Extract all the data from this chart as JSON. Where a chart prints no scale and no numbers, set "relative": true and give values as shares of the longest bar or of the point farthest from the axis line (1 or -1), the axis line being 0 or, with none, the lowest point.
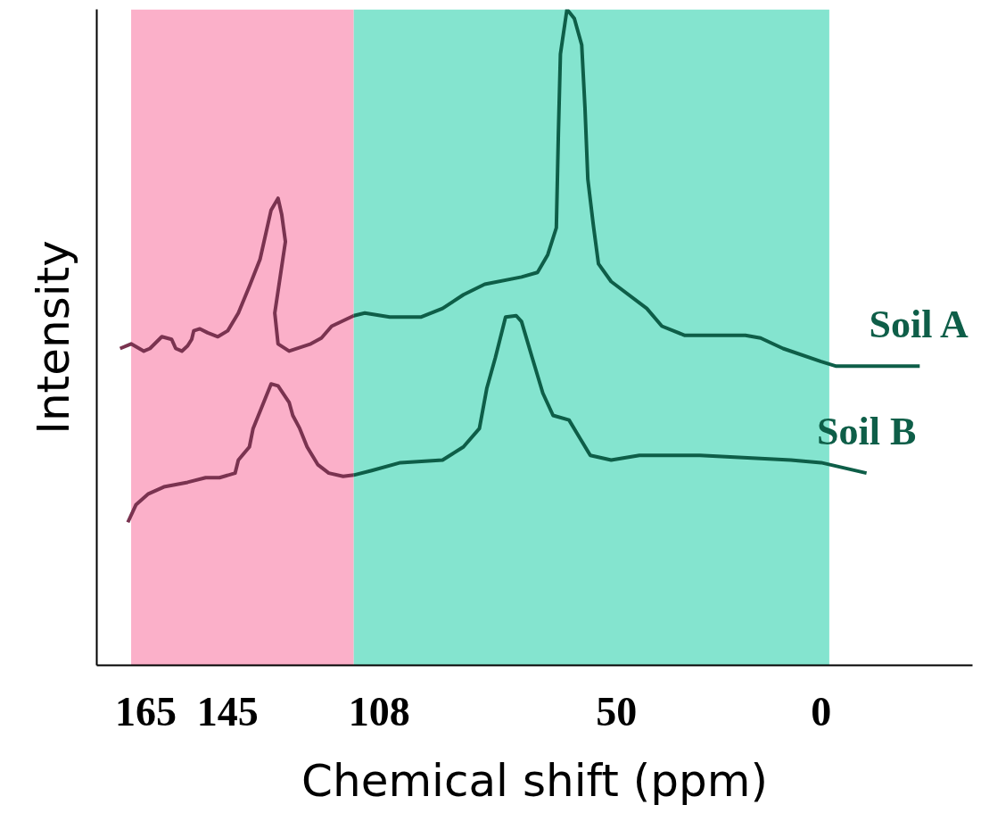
{
  "chart_data": {
    "type": "line",
    "relative": true,
    "xlabel": "Chemical shift (ppm)",
    "ylabel": "Intensity",
    "xlim": [
      177,
      -37
    ],
    "xticks": [
      165,
      145,
      108,
      50,
      0
    ],
    "marker": "none",
    "line_style": "solid",
    "bands": [
      {
        "axis": "x",
        "from": 168.6,
        "to": 114.2,
        "color": "#fbb0c9"
      },
      {
        "axis": "x",
        "from": 114.2,
        "to": -2,
        "color": "#84e4cf"
      }
    ],
    "series": [
      {
        "color": "#7a3350",
        "x": [
          171.3,
          168.6,
          165.5,
          164.0,
          161.1,
          158.7,
          157.7,
          156.2,
          154.8,
          153.8,
          153.3,
          151.8,
          149.9,
          147.4,
          145,
          142.4,
          139.7,
          137.1,
          134.4,
          132.7,
          131.8,
          130.9,
          133.5,
          132.7,
          130.0,
          124.7,
          122.1,
          119.6,
          114.2
        ],
        "values": [
          0.483,
          0.49,
          0.479,
          0.483,
          0.501,
          0.497,
          0.483,
          0.479,
          0.487,
          0.497,
          0.51,
          0.513,
          0.507,
          0.501,
          0.51,
          0.537,
          0.578,
          0.619,
          0.694,
          0.712,
          0.687,
          0.646,
          0.537,
          0.49,
          0.479,
          0.49,
          0.499,
          0.517,
          0.533
        ]
      },
      {
        "name": "Soil A",
        "color": "#0e5e48",
        "x": [
          114.2,
          111.5,
          105.4,
          97.7,
          92.5,
          87.4,
          82.2,
          73.2,
          69.3,
          66.8,
          64.7,
          64.2,
          63.7,
          62.1,
          60.3,
          58.5,
          57.7,
          57.0,
          55.7,
          54.4,
          51.3,
          42.6,
          38.9,
          33.3,
          18.5,
          14.8,
          9.3,
          0,
          -3.7,
          -24.1
        ],
        "values": [
          0.533,
          0.537,
          0.531,
          0.531,
          0.544,
          0.565,
          0.581,
          0.592,
          0.599,
          0.626,
          0.667,
          0.81,
          0.932,
          1.0,
          0.986,
          0.946,
          0.85,
          0.741,
          0.673,
          0.612,
          0.585,
          0.544,
          0.517,
          0.503,
          0.503,
          0.499,
          0.483,
          0.463,
          0.456,
          0.456
        ]
      },
      {
        "color": "#7a3350",
        "x": [
          169.4,
          167.4,
          164.5,
          160.6,
          154.8,
          150.4,
          147.0,
          143.2,
          142.4,
          139.7,
          138.8,
          136.2,
          134.4,
          132.7,
          130.0,
          129.1,
          127.4,
          125.6,
          123.0,
          120.3,
          116.8,
          114.2
        ],
        "values": [
          0.218,
          0.245,
          0.261,
          0.272,
          0.279,
          0.286,
          0.286,
          0.293,
          0.313,
          0.333,
          0.361,
          0.401,
          0.429,
          0.426,
          0.401,
          0.381,
          0.361,
          0.333,
          0.306,
          0.293,
          0.288,
          0.29
        ]
      },
      {
        "name": "Soil B",
        "color": "#0e5e48",
        "x": [
          114.2,
          109.8,
          102.8,
          92.5,
          87.4,
          83.5,
          81.7,
          79.6,
          77.1,
          74.5,
          73.2,
          70.6,
          68.0,
          65.5,
          61.6,
          59.0,
          56.4,
          51.3,
          44.4,
          29.6,
          7.4,
          0,
          -11.1
        ],
        "values": [
          0.29,
          0.297,
          0.309,
          0.313,
          0.333,
          0.361,
          0.422,
          0.469,
          0.531,
          0.533,
          0.524,
          0.469,
          0.415,
          0.381,
          0.374,
          0.347,
          0.32,
          0.313,
          0.32,
          0.32,
          0.313,
          0.309,
          0.293
        ]
      }
    ]
  }
}
